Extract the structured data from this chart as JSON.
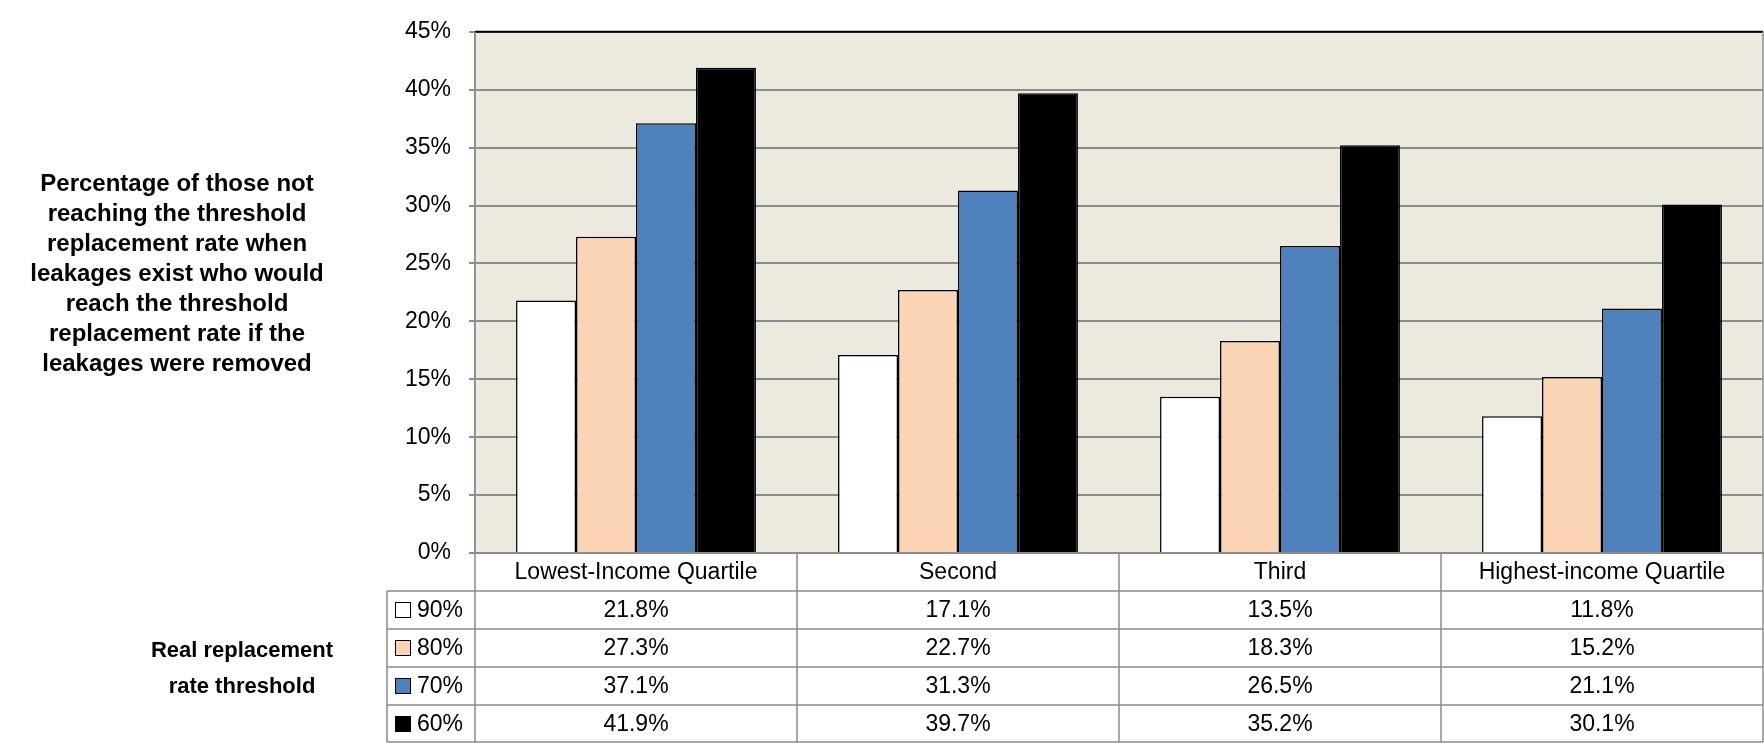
{
  "chart_data": {
    "type": "bar",
    "ylabel": "Percentage of those not reaching the threshold replacement rate when leakages exist who would reach the threshold replacement rate if the leakages were removed",
    "legend_title": "Real replacement rate threshold",
    "categories": [
      "Lowest-Income Quartile",
      "Second",
      "Third",
      "Highest-income Quartile"
    ],
    "series": [
      {
        "name": "90%",
        "color": "#ffffff",
        "values": [
          21.8,
          17.1,
          13.5,
          11.8
        ],
        "value_labels": [
          "21.8%",
          "17.1%",
          "13.5%",
          "11.8%"
        ]
      },
      {
        "name": "80%",
        "color": "#fbd5b5",
        "values": [
          27.3,
          22.7,
          18.3,
          15.2
        ],
        "value_labels": [
          "27.3%",
          "22.7%",
          "18.3%",
          "15.2%"
        ]
      },
      {
        "name": "70%",
        "color": "#4f81bd",
        "values": [
          37.1,
          31.3,
          26.5,
          21.1
        ],
        "value_labels": [
          "37.1%",
          "31.3%",
          "26.5%",
          "21.1%"
        ]
      },
      {
        "name": "60%",
        "color": "#000000",
        "values": [
          41.9,
          39.7,
          35.2,
          30.1
        ],
        "value_labels": [
          "41.9%",
          "39.7%",
          "35.2%",
          "30.1%"
        ]
      }
    ],
    "ylim": [
      0,
      45
    ],
    "yticks": [
      {
        "value": 0,
        "label": "0%"
      },
      {
        "value": 5,
        "label": "5%"
      },
      {
        "value": 10,
        "label": "10%"
      },
      {
        "value": 15,
        "label": "15%"
      },
      {
        "value": 20,
        "label": "20%"
      },
      {
        "value": 25,
        "label": "25%"
      },
      {
        "value": 30,
        "label": "30%"
      },
      {
        "value": 35,
        "label": "35%"
      },
      {
        "value": 40,
        "label": "40%"
      },
      {
        "value": 45,
        "label": "45%"
      }
    ],
    "grid": "y",
    "legend": "bottom"
  }
}
